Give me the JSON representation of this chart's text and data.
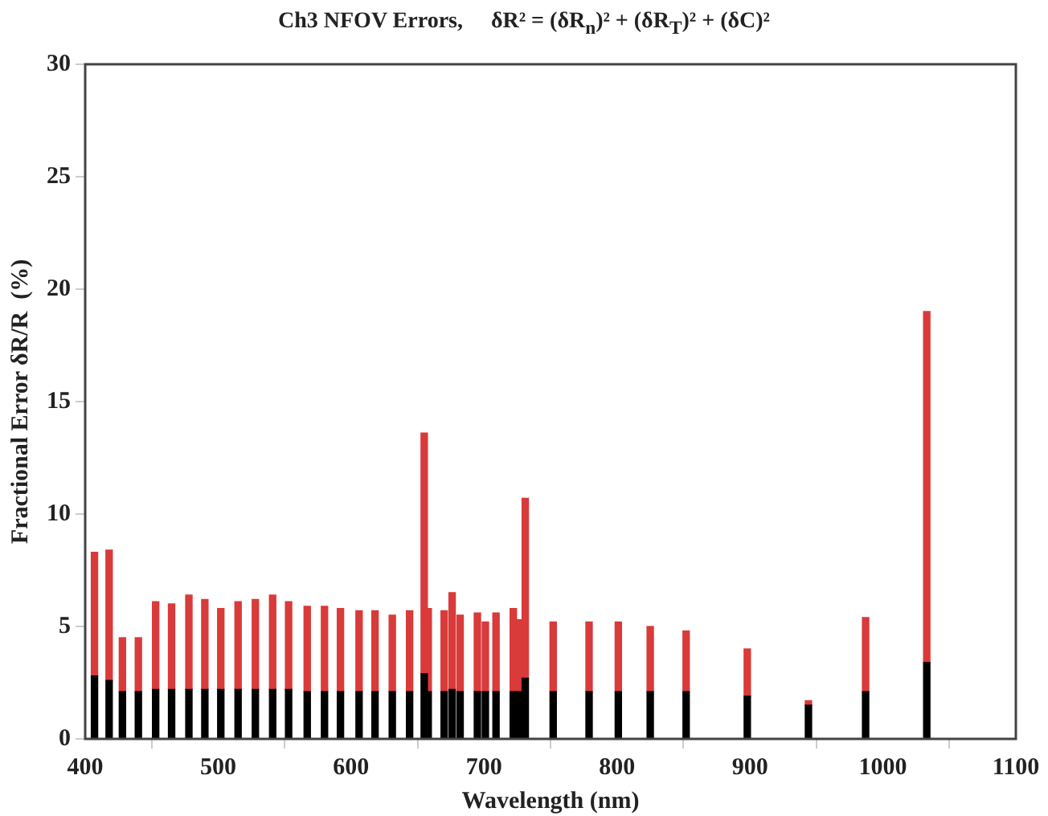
{
  "chart_data": {
    "type": "bar",
    "stacked": true,
    "title": "Ch3 NFOV Errors,     δR² = (δR$_{n}$)² + (δR$_{T}$)² + (δC)²",
    "xlabel": "Wavelength (nm)",
    "ylabel": "Fractional Error δR/R  (%)",
    "x": [
      407,
      418,
      428,
      440,
      453,
      465,
      478,
      490,
      502,
      515,
      528,
      541,
      553,
      567,
      580,
      592,
      606,
      618,
      631,
      644,
      655,
      658,
      670,
      676,
      682,
      695,
      701,
      709,
      722,
      727,
      731,
      752,
      779,
      801,
      825,
      852,
      898,
      944,
      987,
      1033
    ],
    "series": [
      {
        "color": "#000000",
        "values": [
          2.8,
          2.6,
          2.1,
          2.1,
          2.2,
          2.2,
          2.2,
          2.2,
          2.2,
          2.2,
          2.2,
          2.2,
          2.2,
          2.1,
          2.1,
          2.1,
          2.1,
          2.1,
          2.1,
          2.1,
          2.9,
          2.1,
          2.1,
          2.2,
          2.1,
          2.1,
          2.1,
          2.1,
          2.1,
          2.1,
          2.7,
          2.1,
          2.1,
          2.1,
          2.1,
          2.1,
          1.9,
          1.5,
          2.1,
          3.4
        ]
      },
      {
        "color": "#d93a3a",
        "values": [
          5.5,
          5.8,
          2.4,
          2.4,
          3.9,
          3.8,
          4.2,
          4.0,
          3.6,
          3.9,
          4.0,
          4.2,
          3.9,
          3.8,
          3.8,
          3.7,
          3.6,
          3.6,
          3.4,
          3.6,
          10.7,
          3.7,
          3.6,
          4.3,
          3.4,
          3.5,
          3.1,
          3.5,
          3.7,
          3.2,
          8.0,
          3.1,
          3.1,
          3.1,
          2.9,
          2.7,
          2.1,
          0.2,
          3.3,
          15.6
        ]
      }
    ],
    "xlim": [
      400,
      1100
    ],
    "xticks": [
      400,
      500,
      600,
      700,
      800,
      900,
      1000,
      1100
    ],
    "ylim": [
      0,
      30
    ],
    "yticks": [
      0,
      5,
      10,
      15,
      20,
      25,
      30
    ],
    "grid": false,
    "legend": false
  }
}
